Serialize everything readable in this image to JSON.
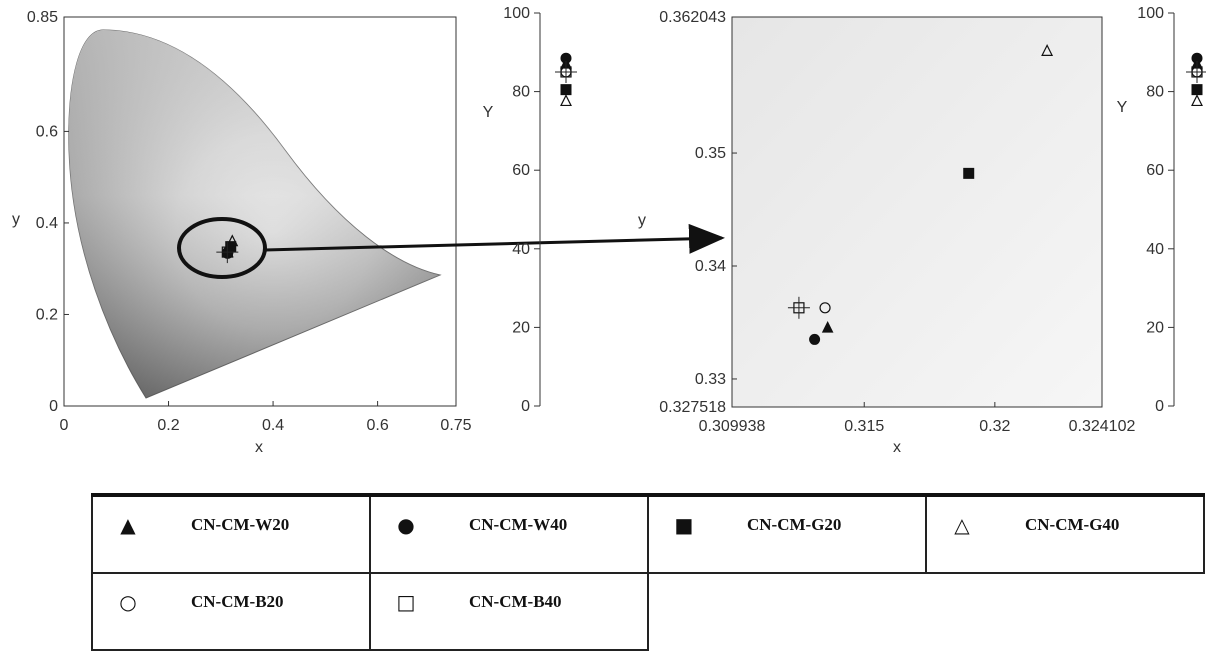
{
  "chart_data": [
    {
      "type": "scatter",
      "title": "",
      "xlabel": "x",
      "ylabel": "y",
      "xlim": [
        0,
        0.75
      ],
      "ylim": [
        0,
        0.85
      ],
      "xticks": [
        "0",
        "0.2",
        "0.4",
        "0.6",
        "0.75"
      ],
      "yticks": [
        "0",
        "0.2",
        "0.4",
        "0.6",
        "0.85"
      ],
      "background": "CIE 1931 chromaticity diagram (grayscale)",
      "series": [
        {
          "name": "CN-CM-W20",
          "marker": "filled-triangle",
          "x": [
            0.3136
          ],
          "y": [
            0.3345
          ]
        },
        {
          "name": "CN-CM-W40",
          "marker": "filled-circle",
          "x": [
            0.3131
          ],
          "y": [
            0.3335
          ]
        },
        {
          "name": "CN-CM-G20",
          "marker": "filled-square",
          "x": [
            0.319
          ],
          "y": [
            0.3482
          ]
        },
        {
          "name": "CN-CM-G40",
          "marker": "open-triangle",
          "x": [
            0.322
          ],
          "y": [
            0.359
          ]
        },
        {
          "name": "CN-CM-B20",
          "marker": "open-circle",
          "x": [
            0.3135
          ],
          "y": [
            0.3363
          ]
        },
        {
          "name": "CN-CM-B40",
          "marker": "open-square",
          "x": [
            0.3125
          ],
          "y": [
            0.3363
          ]
        }
      ],
      "annotations": [
        "ellipse around data cluster",
        "arrow to zoomed view"
      ]
    },
    {
      "type": "scatter",
      "ylabel": "Y",
      "ylim": [
        0,
        100
      ],
      "yticks": [
        "0",
        "20",
        "40",
        "60",
        "80",
        "100"
      ],
      "series": [
        {
          "name": "CN-CM-W20",
          "marker": "filled-triangle",
          "y": [
            87
          ]
        },
        {
          "name": "CN-CM-W40",
          "marker": "filled-circle",
          "y": [
            88.5
          ]
        },
        {
          "name": "CN-CM-G20",
          "marker": "filled-square",
          "y": [
            80.5
          ]
        },
        {
          "name": "CN-CM-G40",
          "marker": "open-triangle",
          "y": [
            77.5
          ]
        },
        {
          "name": "CN-CM-B20",
          "marker": "open-circle",
          "y": [
            85
          ]
        },
        {
          "name": "CN-CM-B40",
          "marker": "open-square",
          "y": [
            85
          ]
        }
      ]
    },
    {
      "type": "scatter",
      "xlabel": "x",
      "ylabel": "y",
      "xlim": [
        0.309938,
        0.324102
      ],
      "ylim": [
        0.327518,
        0.362043
      ],
      "xticks": [
        "0.309938",
        "0.315",
        "0.32",
        "0.324102"
      ],
      "yticks": [
        "0.327518",
        "0.33",
        "0.34",
        "0.35",
        "0.362043"
      ],
      "series": [
        {
          "name": "CN-CM-W20",
          "marker": "filled-triangle",
          "x": [
            0.3136
          ],
          "y": [
            0.3345
          ]
        },
        {
          "name": "CN-CM-W40",
          "marker": "filled-circle",
          "x": [
            0.3131
          ],
          "y": [
            0.3335
          ]
        },
        {
          "name": "CN-CM-G20",
          "marker": "filled-square",
          "x": [
            0.319
          ],
          "y": [
            0.3482
          ]
        },
        {
          "name": "CN-CM-G40",
          "marker": "open-triangle",
          "x": [
            0.322
          ],
          "y": [
            0.359
          ]
        },
        {
          "name": "CN-CM-B20",
          "marker": "open-circle",
          "x": [
            0.3135
          ],
          "y": [
            0.3363
          ]
        },
        {
          "name": "CN-CM-B40",
          "marker": "open-square",
          "x": [
            0.3125
          ],
          "y": [
            0.3363
          ]
        }
      ]
    },
    {
      "type": "scatter",
      "ylabel": "Y",
      "ylim": [
        0,
        100
      ],
      "yticks": [
        "0",
        "20",
        "40",
        "60",
        "80",
        "100"
      ],
      "series": [
        {
          "name": "CN-CM-W20",
          "marker": "filled-triangle",
          "y": [
            87
          ]
        },
        {
          "name": "CN-CM-W40",
          "marker": "filled-circle",
          "y": [
            88.5
          ]
        },
        {
          "name": "CN-CM-G20",
          "marker": "filled-square",
          "y": [
            80.5
          ]
        },
        {
          "name": "CN-CM-G40",
          "marker": "open-triangle",
          "y": [
            77.5
          ]
        },
        {
          "name": "CN-CM-B20",
          "marker": "open-circle",
          "y": [
            85
          ]
        },
        {
          "name": "CN-CM-B40",
          "marker": "open-square",
          "y": [
            85
          ]
        }
      ]
    }
  ],
  "legend": {
    "items": [
      {
        "symbol": "▲",
        "label": "CN-CM-W20"
      },
      {
        "symbol": "●",
        "label": "CN-CM-W40"
      },
      {
        "symbol": "■",
        "label": "CN-CM-G20"
      },
      {
        "symbol": "△",
        "label": "CN-CM-G40"
      },
      {
        "symbol": "○",
        "label": "CN-CM-B20"
      },
      {
        "symbol": "□",
        "label": "CN-CM-B40"
      }
    ]
  },
  "colors": {
    "marker": "#111111",
    "axis": "#333333"
  }
}
